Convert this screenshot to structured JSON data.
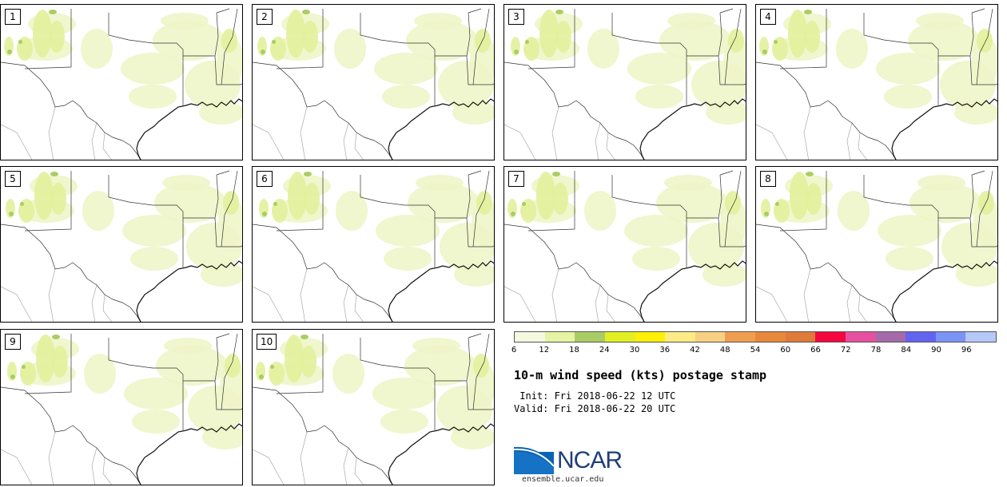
{
  "panels": [
    {
      "label": "1"
    },
    {
      "label": "2"
    },
    {
      "label": "3"
    },
    {
      "label": "4"
    },
    {
      "label": "5"
    },
    {
      "label": "6"
    },
    {
      "label": "7"
    },
    {
      "label": "8"
    },
    {
      "label": "9"
    },
    {
      "label": "10"
    }
  ],
  "colorbar": {
    "colors": [
      "#f5f9de",
      "#e4f4a4",
      "#a9cd64",
      "#e2ef24",
      "#fdef06",
      "#fdeb86",
      "#f8d082",
      "#ef9e50",
      "#e8883a",
      "#de7a3a",
      "#f4073f",
      "#e650a0",
      "#a56aa9",
      "#6264f0",
      "#7a93f5",
      "#b5c8f8"
    ],
    "ticks": [
      "6",
      "12",
      "18",
      "24",
      "30",
      "36",
      "42",
      "48",
      "54",
      "60",
      "66",
      "72",
      "78",
      "84",
      "90",
      "96"
    ]
  },
  "title": "10-m wind speed (kts) postage stamp",
  "init_text": " Init: Fri 2018-06-22 12 UTC",
  "valid_text": "Valid: Fri 2018-06-22 20 UTC",
  "logo_text": "NCAR",
  "url": "ensemble.ucar.edu"
}
